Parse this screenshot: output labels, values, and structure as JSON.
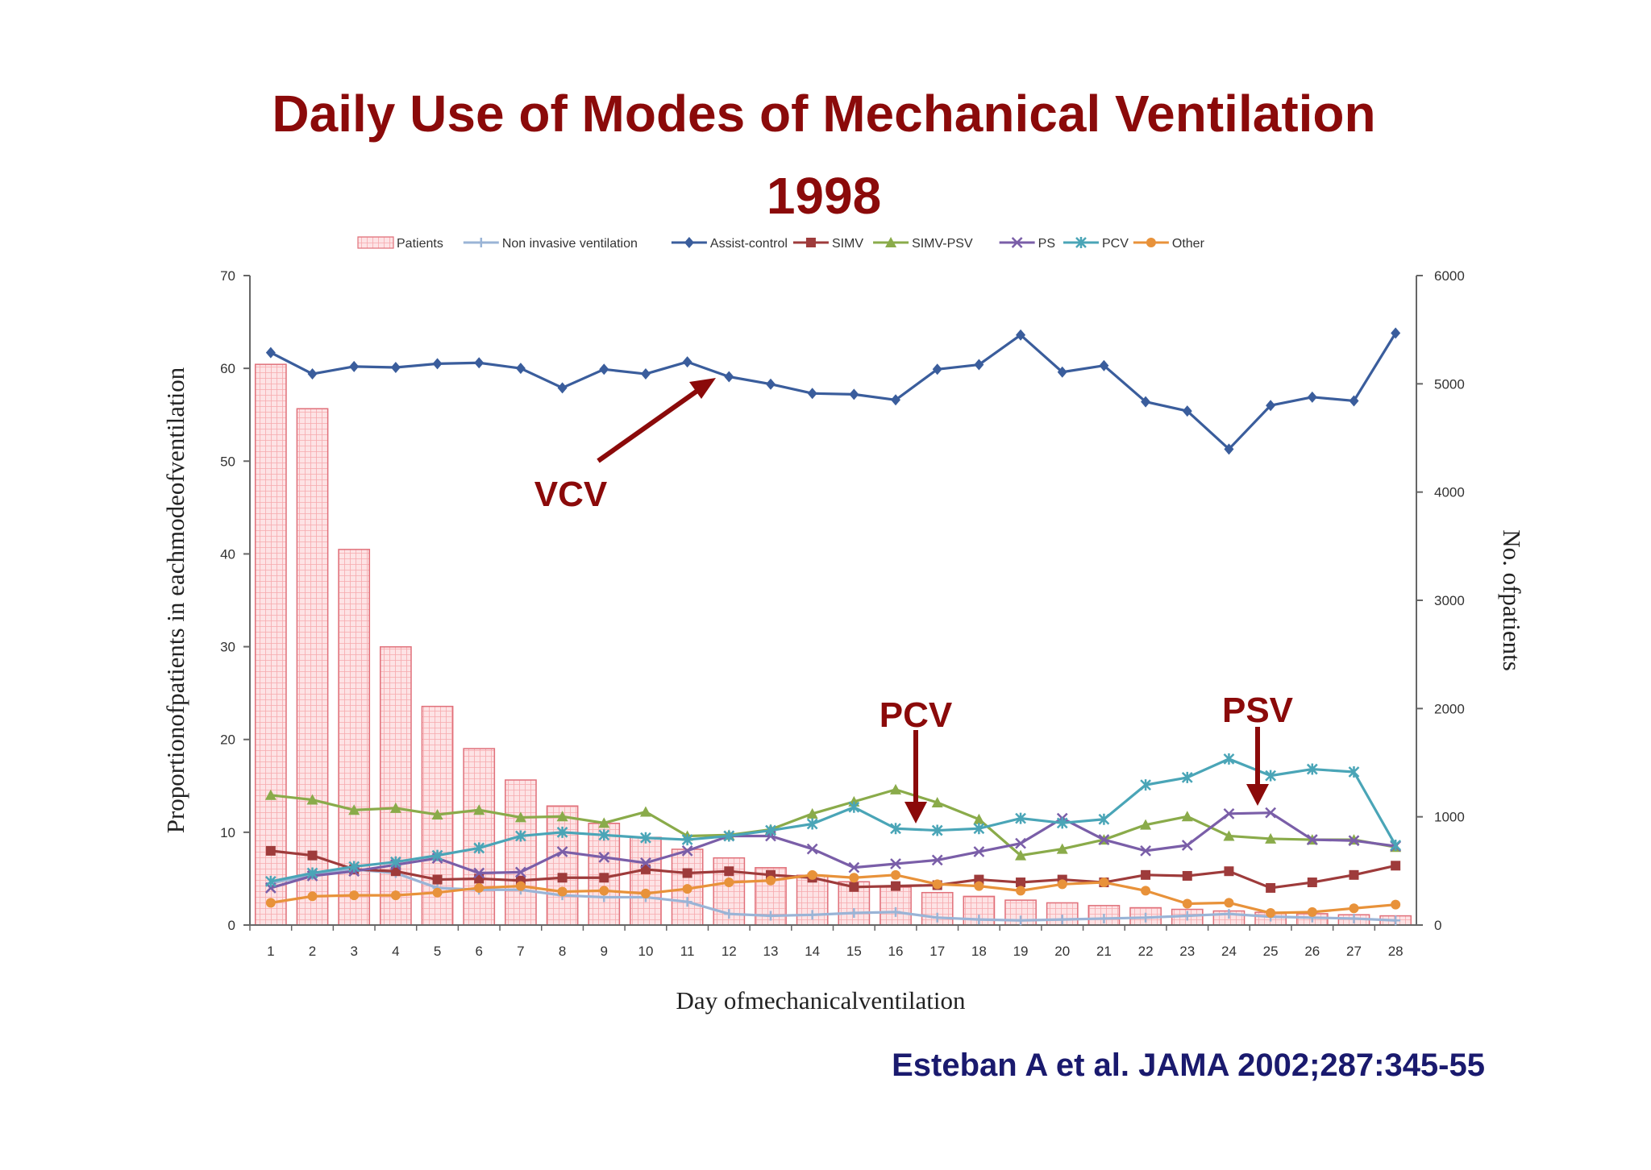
{
  "slide": {
    "title_line1": "Daily Use of Modes of Mechanical Ventilation",
    "title_line2": "1998",
    "citation": "Esteban A et al. JAMA 2002;287:345-55",
    "colors": {
      "title": "#8b0a0a",
      "citation": "#1a1a6e",
      "annotation": "#8b0a0a"
    }
  },
  "annotations": [
    {
      "label": "VCV",
      "points_to": "Assist-control"
    },
    {
      "label": "PCV",
      "points_to": "PCV"
    },
    {
      "label": "PSV",
      "points_to": "PS"
    }
  ],
  "chart_data": {
    "type": "line",
    "xlabel": "Day ofmechanicalventilation",
    "ylabel": "Proportionofpatients in eachmodeofventilation",
    "y2label": "No. ofpatients",
    "ylim": [
      0,
      70
    ],
    "y2lim": [
      0,
      6000
    ],
    "yticks": [
      "0",
      "10",
      "20",
      "30",
      "40",
      "50",
      "60",
      "70"
    ],
    "y2ticks": [
      "0",
      "1000",
      "2000",
      "3000",
      "4000",
      "5000",
      "6000"
    ],
    "x": [
      "1",
      "2",
      "3",
      "4",
      "5",
      "6",
      "7",
      "8",
      "9",
      "10",
      "11",
      "12",
      "13",
      "14",
      "15",
      "16",
      "17",
      "18",
      "19",
      "20",
      "21",
      "22",
      "23",
      "24",
      "25",
      "26",
      "27",
      "28"
    ],
    "grid": false,
    "legend_position": "top",
    "bars": {
      "name": "Patients",
      "axis": "right",
      "color": "#f7a9ad",
      "values": [
        5180,
        4770,
        3470,
        2570,
        2020,
        1630,
        1340,
        1100,
        940,
        810,
        700,
        620,
        530,
        460,
        400,
        350,
        300,
        265,
        230,
        205,
        180,
        160,
        145,
        130,
        118,
        105,
        95,
        85
      ]
    },
    "series": [
      {
        "name": "Non invasive ventilation",
        "color": "#9ab4d6",
        "marker": "plus",
        "values": [
          4.5,
          5.4,
          6.0,
          5.6,
          4.0,
          3.8,
          3.8,
          3.2,
          3.0,
          3.0,
          2.5,
          1.2,
          1.0,
          1.1,
          1.3,
          1.4,
          0.8,
          0.6,
          0.5,
          0.6,
          0.7,
          0.8,
          1.0,
          1.2,
          0.9,
          0.8,
          0.7,
          0.5
        ]
      },
      {
        "name": "Assist-control",
        "color": "#3a5d9c",
        "marker": "diamond",
        "values": [
          61.7,
          59.4,
          60.2,
          60.1,
          60.5,
          60.6,
          60.0,
          57.9,
          59.9,
          59.4,
          60.7,
          59.1,
          58.3,
          57.3,
          57.2,
          56.6,
          59.9,
          60.4,
          63.6,
          59.6,
          60.3,
          56.4,
          55.4,
          51.3,
          56.0,
          56.9,
          56.5,
          63.8
        ]
      },
      {
        "name": "SIMV",
        "color": "#9e3b3b",
        "marker": "square",
        "values": [
          8.0,
          7.5,
          6.0,
          5.8,
          4.9,
          5.0,
          4.8,
          5.1,
          5.1,
          6.0,
          5.6,
          5.8,
          5.4,
          5.1,
          4.1,
          4.2,
          4.3,
          4.9,
          4.6,
          4.9,
          4.6,
          5.4,
          5.3,
          5.8,
          4.0,
          4.6,
          5.4,
          6.4
        ]
      },
      {
        "name": "SIMV-PSV",
        "color": "#8aab4a",
        "marker": "triangle",
        "values": [
          14.0,
          13.5,
          12.4,
          12.6,
          11.9,
          12.4,
          11.6,
          11.7,
          11.0,
          12.2,
          9.6,
          9.7,
          10.3,
          12.0,
          13.3,
          14.6,
          13.2,
          11.4,
          7.5,
          8.2,
          9.2,
          10.8,
          11.7,
          9.6,
          9.3,
          9.2,
          9.2,
          8.4
        ]
      },
      {
        "name": "PS",
        "color": "#7a5ea8",
        "marker": "x",
        "values": [
          4.0,
          5.3,
          5.8,
          6.5,
          7.2,
          5.6,
          5.7,
          7.9,
          7.3,
          6.7,
          8.0,
          9.6,
          9.6,
          8.2,
          6.2,
          6.6,
          7.0,
          7.9,
          8.8,
          11.5,
          9.2,
          8.0,
          8.6,
          12.0,
          12.1,
          9.2,
          9.1,
          8.5
        ]
      },
      {
        "name": "PCV",
        "color": "#4aa5b7",
        "marker": "asterisk",
        "values": [
          4.7,
          5.6,
          6.3,
          6.8,
          7.5,
          8.3,
          9.6,
          10.0,
          9.7,
          9.4,
          9.2,
          9.6,
          10.2,
          10.9,
          12.7,
          10.4,
          10.2,
          10.4,
          11.5,
          11.0,
          11.4,
          15.1,
          15.9,
          17.9,
          16.1,
          16.8,
          16.5,
          8.6
        ]
      },
      {
        "name": "Other",
        "color": "#e8923a",
        "marker": "circle",
        "values": [
          2.4,
          3.1,
          3.2,
          3.2,
          3.5,
          4.0,
          4.2,
          3.6,
          3.7,
          3.4,
          3.9,
          4.6,
          4.8,
          5.4,
          5.1,
          5.4,
          4.4,
          4.2,
          3.7,
          4.4,
          4.6,
          3.7,
          2.3,
          2.4,
          1.3,
          1.4,
          1.8,
          2.2
        ]
      }
    ]
  }
}
